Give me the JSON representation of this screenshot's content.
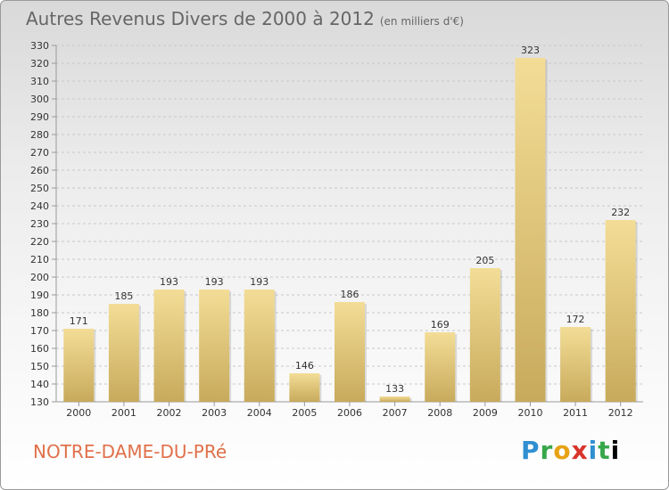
{
  "title": {
    "main": "Autres Revenus Divers de 2000 à 2012",
    "sub": "(en milliers d'€)"
  },
  "commune": "NOTRE-DAME-DU-PRé",
  "logo": {
    "letters": [
      "P",
      "r",
      "o",
      "x",
      "i",
      "t",
      "i"
    ]
  },
  "colors": {
    "bar_light": "#f3dd96",
    "bar_dark": "#c8aa5c",
    "grid": "#c8c8c8",
    "axis_text": "#333333",
    "title": "#666666",
    "commune": "#e0704a"
  },
  "chart_data": {
    "type": "bar",
    "categories": [
      "2000",
      "2001",
      "2002",
      "2003",
      "2004",
      "2005",
      "2006",
      "2007",
      "2008",
      "2009",
      "2010",
      "2011",
      "2012"
    ],
    "values": [
      171,
      185,
      193,
      193,
      193,
      146,
      186,
      133,
      169,
      205,
      323,
      172,
      232
    ],
    "ylim": [
      130,
      330
    ],
    "yticks": [
      130,
      140,
      150,
      160,
      170,
      180,
      190,
      200,
      210,
      220,
      230,
      240,
      250,
      260,
      270,
      280,
      290,
      300,
      310,
      320,
      330
    ],
    "grid": "horizontal dashed",
    "legend": "none"
  }
}
